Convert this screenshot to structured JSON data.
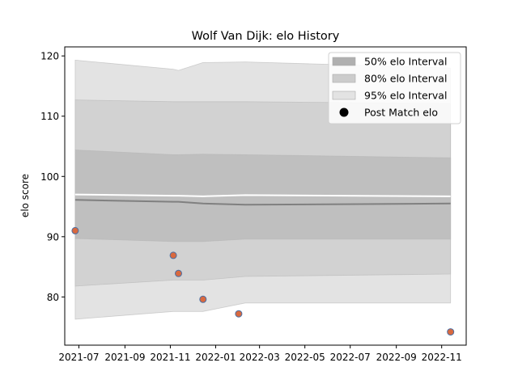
{
  "chart_data": {
    "type": "line",
    "title": "Wolf Van Dijk: elo History",
    "xlabel": "",
    "ylabel": "elo score",
    "x_ticks": [
      "2021-07",
      "2021-09",
      "2021-11",
      "2022-01",
      "2022-03",
      "2022-05",
      "2022-07",
      "2022-09",
      "2022-11"
    ],
    "x_tick_dates": [
      "2021-07-01",
      "2021-09-01",
      "2021-11-01",
      "2022-01-01",
      "2022-03-01",
      "2022-05-01",
      "2022-07-01",
      "2022-09-01",
      "2022-11-01"
    ],
    "xlim": [
      "2021-06-12",
      "2022-12-04"
    ],
    "y_ticks": [
      80,
      90,
      100,
      110,
      120
    ],
    "ylim": [
      72,
      121.5
    ],
    "grid": false,
    "legend_placement": "top-right",
    "legend": [
      {
        "label": "50% elo Interval",
        "kind": "band",
        "color": "#b0b0b0"
      },
      {
        "label": "80% elo Interval",
        "kind": "band",
        "color": "#cccccc"
      },
      {
        "label": "95% elo Interval",
        "kind": "band",
        "color": "#e3e3e3"
      },
      {
        "label": "Post Match elo",
        "kind": "marker",
        "color": "#000000"
      }
    ],
    "band_x": [
      "2021-06-26",
      "2021-11-05",
      "2021-11-12",
      "2021-12-15",
      "2022-02-10",
      "2022-11-13"
    ],
    "bands": [
      {
        "name": "95% elo Interval",
        "color": "#e3e3e3",
        "upper": [
          119.3,
          117.8,
          117.6,
          118.9,
          119.0,
          118.0
        ],
        "lower": [
          76.3,
          77.6,
          77.6,
          77.6,
          79.0,
          79.0
        ]
      },
      {
        "name": "80% elo Interval",
        "color": "#d2d2d2",
        "upper": [
          112.7,
          112.4,
          112.4,
          112.4,
          112.4,
          112.1
        ],
        "lower": [
          81.8,
          82.8,
          82.8,
          82.8,
          83.4,
          83.8
        ]
      },
      {
        "name": "50% elo Interval",
        "color": "#bfbfbf",
        "upper": [
          104.4,
          103.6,
          103.6,
          103.7,
          103.6,
          103.1
        ],
        "lower": [
          89.7,
          89.2,
          89.2,
          89.2,
          89.6,
          89.6
        ]
      }
    ],
    "mean_line": {
      "color": "#808080",
      "values": [
        96.1,
        95.8,
        95.8,
        95.5,
        95.3,
        95.5
      ]
    },
    "upper_white_line": {
      "color": "#ffffff",
      "values": [
        97.0,
        96.8,
        96.8,
        96.7,
        96.9,
        96.7
      ]
    },
    "points": {
      "name": "Post Match elo",
      "fill": "#d9693f",
      "edge": "#4a6fa5",
      "x": [
        "2021-06-26",
        "2021-11-05",
        "2021-11-12",
        "2021-12-15",
        "2022-02-01",
        "2022-11-13"
      ],
      "y": [
        91.0,
        86.9,
        83.9,
        79.6,
        77.2,
        74.2
      ]
    }
  }
}
